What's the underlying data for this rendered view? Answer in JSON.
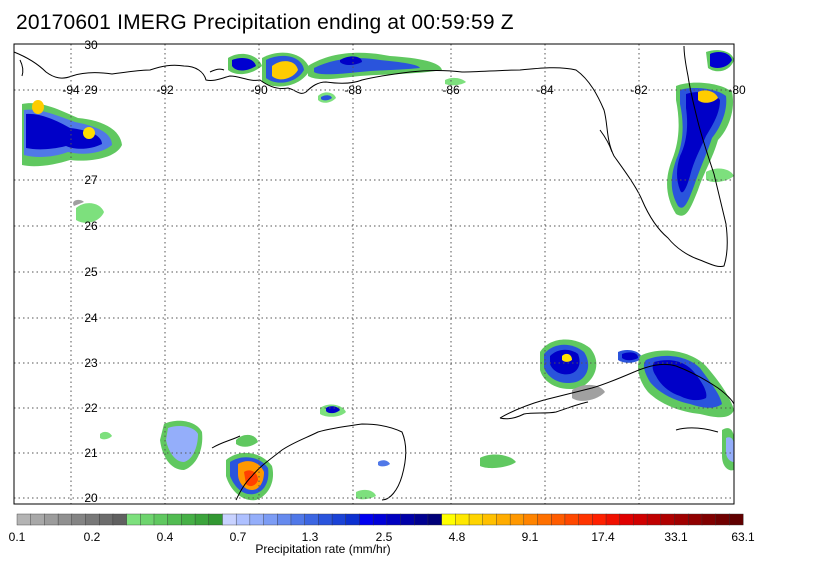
{
  "title": "20170601 IMERG Precipitation ending at 00:59:59 Z",
  "map": {
    "lon_ticks": [
      "-94",
      "-92",
      "-90",
      "-88",
      "-86",
      "-84",
      "-82",
      "-80"
    ],
    "lat_ticks": [
      "30",
      "29",
      "27",
      "26",
      "25",
      "24",
      "23",
      "22",
      "21",
      "20"
    ],
    "lon_range": [
      -94.9,
      -80.1
    ],
    "lat_range": [
      19.9,
      30.1
    ],
    "grid": true
  },
  "colorbar": {
    "label": "Precipitation rate (mm/hr)",
    "tick_labels": [
      "0.1",
      "0.2",
      "0.4",
      "0.7",
      "1.3",
      "2.5",
      "4.8",
      "9.1",
      "17.4",
      "33.1",
      "63.1"
    ],
    "colors": [
      "#b4b4b4",
      "#a8a8a8",
      "#9c9c9c",
      "#909090",
      "#848484",
      "#787878",
      "#6c6c6c",
      "#606060",
      "#7de07d",
      "#6ed46e",
      "#60c860",
      "#52bc52",
      "#46b046",
      "#3ca43c",
      "#329832",
      "#c8d2ff",
      "#aec0ff",
      "#94aefa",
      "#7c9cf4",
      "#668aee",
      "#5078e8",
      "#3c66e2",
      "#2a54dc",
      "#1a42d6",
      "#0c30d0",
      "#0000f0",
      "#0000d8",
      "#0000c0",
      "#0000a8",
      "#000090",
      "#000078",
      "#ffff00",
      "#ffe800",
      "#ffd400",
      "#ffc000",
      "#ffac00",
      "#ff9800",
      "#ff8400",
      "#ff7000",
      "#ff5c00",
      "#ff4800",
      "#ff3400",
      "#ff2000",
      "#f01000",
      "#e00000",
      "#d00000",
      "#c00000",
      "#b00000",
      "#a00000",
      "#900000",
      "#800000",
      "#700000",
      "#600000"
    ]
  }
}
